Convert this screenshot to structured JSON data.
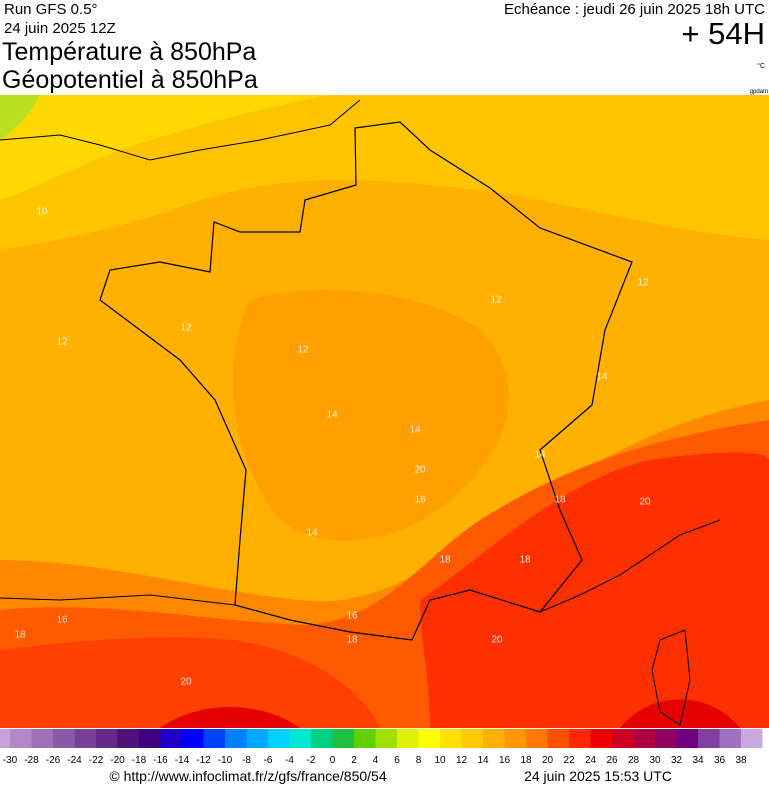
{
  "header": {
    "run": "Run GFS 0.5°",
    "run_date": "24 juin 2025 12Z",
    "title1": "Température à 850hPa",
    "title2": "Géopotentiel à 850hPa",
    "valid": "Echéance : jeudi 26 juin 2025 18h UTC",
    "lead": "+ 54H",
    "unit": "°C",
    "source_tag": "gpdam"
  },
  "map": {
    "contour_labels": [
      10,
      12,
      12,
      12,
      12,
      14,
      12,
      14,
      14,
      14,
      16,
      18,
      18,
      18,
      20,
      20,
      14,
      18,
      16,
      16,
      18,
      20,
      20
    ]
  },
  "colorbar": {
    "ticks": [
      -30,
      -28,
      -26,
      -24,
      -22,
      -20,
      -18,
      -16,
      -14,
      -12,
      -10,
      -8,
      -6,
      -4,
      -2,
      0,
      2,
      4,
      6,
      8,
      10,
      12,
      14,
      16,
      18,
      20,
      22,
      24,
      26,
      28,
      30,
      32,
      34,
      36,
      38
    ]
  },
  "footer": {
    "url": "© http://www.infoclimat.fr/z/gfs/france/850/54",
    "generated": "24 juin 2025 15:53 UTC"
  }
}
